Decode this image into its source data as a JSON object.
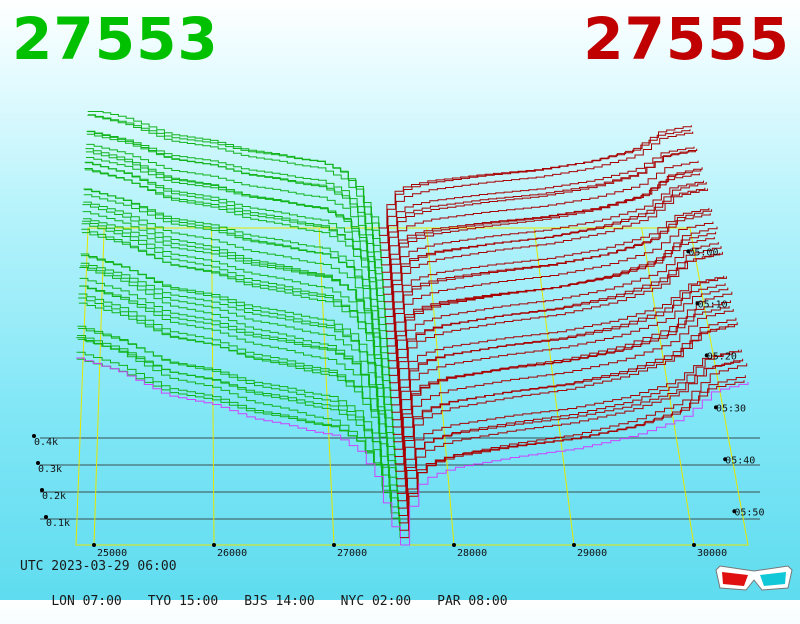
{
  "header": {
    "bid_price": "27553",
    "ask_price": "27555"
  },
  "colors": {
    "bid": "#00c000",
    "ask": "#c00000",
    "bid_lines": "#12b41c",
    "ask_lines": "#a80000",
    "latest_line": "#cc44ff",
    "axis": "#e6e600",
    "depth_grid": "#2a2a2a"
  },
  "chart_data": {
    "type": "line",
    "description_kind": "3d-order-book-depth-ladder",
    "x_axis": {
      "ticks": [
        "25000",
        "26000",
        "27000",
        "28000",
        "29000",
        "30000"
      ],
      "range": [
        24850,
        30450
      ],
      "mid_price": 27554
    },
    "z_axis": {
      "ticks": [
        "05:00",
        "05:10",
        "05:20",
        "05:30",
        "05:40",
        "05:50"
      ],
      "range_minutes": [
        0,
        60
      ]
    },
    "y_axis": {
      "ticks": [
        "0.1k",
        "0.2k",
        "0.3k",
        "0.4k"
      ],
      "range": [
        0,
        1.6
      ]
    },
    "series": [
      {
        "side": "bid",
        "points": [
          [
            24850,
            1.4
          ],
          [
            25200,
            1.3
          ],
          [
            25600,
            1.12
          ],
          [
            26000,
            1.05
          ],
          [
            26300,
            0.95
          ],
          [
            26600,
            0.9
          ],
          [
            26800,
            0.85
          ],
          [
            27000,
            0.82
          ],
          [
            27200,
            0.7
          ],
          [
            27350,
            0.5
          ],
          [
            27450,
            0.2
          ],
          [
            27554,
            0.0
          ]
        ]
      },
      {
        "side": "ask",
        "points": [
          [
            27554,
            0.0
          ],
          [
            27600,
            0.22
          ],
          [
            27700,
            0.45
          ],
          [
            27800,
            0.52
          ],
          [
            28000,
            0.58
          ],
          [
            28500,
            0.66
          ],
          [
            29000,
            0.72
          ],
          [
            29500,
            0.82
          ],
          [
            29900,
            0.95
          ],
          [
            30150,
            1.15
          ],
          [
            30450,
            1.22
          ]
        ]
      }
    ]
  },
  "footer": {
    "utc": "UTC 2023-03-29 06:00",
    "zones": [
      "LON 07:00",
      "TYO 15:00",
      "BJS 14:00",
      "NYC 02:00",
      "PAR 08:00"
    ]
  }
}
